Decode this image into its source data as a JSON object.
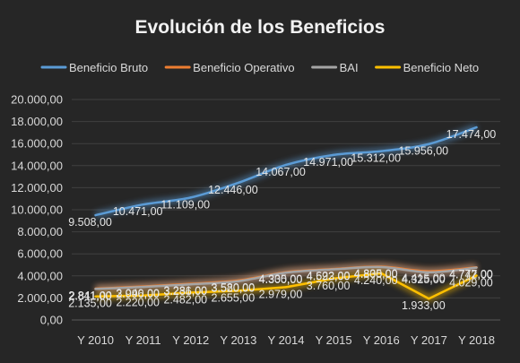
{
  "chart_data": {
    "type": "line",
    "title": "Evolución de los Beneficios",
    "categories": [
      "Y 2010",
      "Y 2011",
      "Y 2012",
      "Y 2013",
      "Y 2014",
      "Y 2015",
      "Y 2016",
      "Y 2017",
      "Y 2018"
    ],
    "ylim": [
      0,
      20000
    ],
    "y_ticks": [
      "0,00",
      "2.000,00",
      "4.000,00",
      "6.000,00",
      "8.000,00",
      "10.000,00",
      "12.000,00",
      "14.000,00",
      "16.000,00",
      "18.000,00",
      "20.000,00"
    ],
    "grid": true,
    "legend_position": "top",
    "series": [
      {
        "name": "Beneficio Bruto",
        "color": "#5b9bd5",
        "smooth": true,
        "values": [
          9508,
          10471,
          11109,
          12446,
          14067,
          14971,
          15312,
          15956,
          17474
        ],
        "labels": [
          "9.508,00",
          "10.471,00",
          "11.109,00",
          "12.446,00",
          "14.067,00",
          "14.971,00",
          "15.312,00",
          "15.956,00",
          "17.474,00"
        ]
      },
      {
        "name": "Beneficio Operativo",
        "color": "#ed7d31",
        "smooth": true,
        "values": [
          2841,
          3040,
          3281,
          3580,
          4335,
          4622,
          4835,
          4415,
          4777
        ],
        "labels": [
          "2.841,00",
          "3.040,00",
          "3.281,00",
          "3.580,00",
          "4.335,00",
          "4.622,00",
          "4.835,00",
          "4.415,00",
          "4.777,00"
        ]
      },
      {
        "name": "BAI",
        "color": "#a5a5a5",
        "smooth": true,
        "values": [
          2811,
          2996,
          3236,
          3520,
          4300,
          4593,
          4800,
          4325,
          4742
        ],
        "labels": [
          "2.811,00",
          "2.996,00",
          "3.236,00",
          "3.520,00",
          "4.300,00",
          "4.593,00",
          "4.800,00",
          "4.325,00",
          "4.742,00"
        ]
      },
      {
        "name": "Beneficio Neto",
        "color": "#ffc000",
        "smooth": false,
        "values": [
          2135,
          2220,
          2482,
          2655,
          2979,
          3760,
          4240,
          1933,
          4029
        ],
        "labels": [
          "2.135,00",
          "2.220,00",
          "2.482,00",
          "2.655,00",
          "2.979,00",
          "3.760,00",
          "4.240,00",
          "1.933,00",
          "4.029,00"
        ]
      }
    ]
  }
}
